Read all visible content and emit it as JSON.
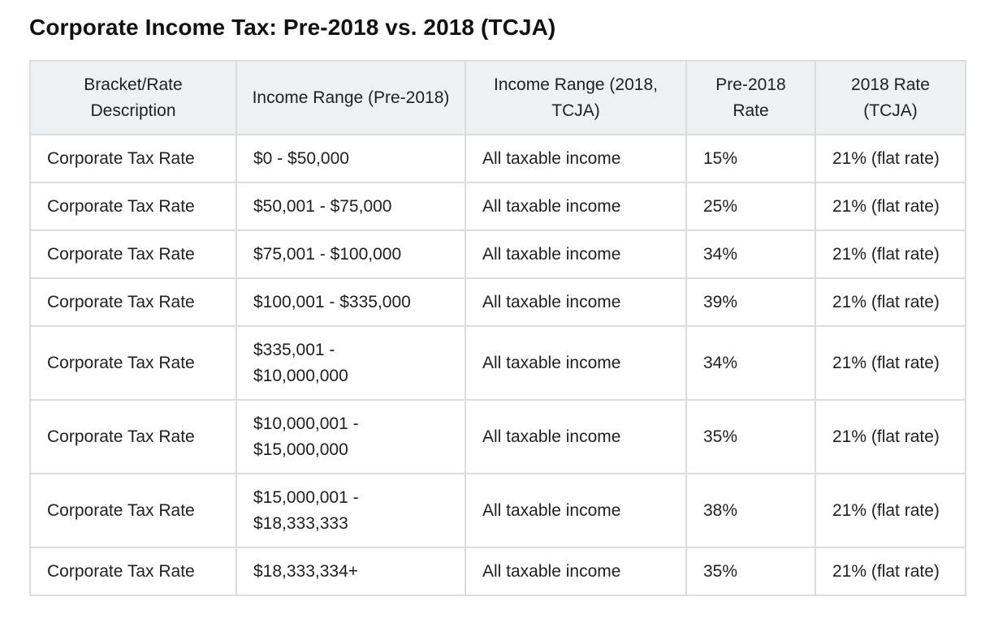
{
  "page": {
    "title": "Corporate Income Tax: Pre-2018 vs. 2018 (TCJA)"
  },
  "table": {
    "headers": [
      "Bracket/Rate Description",
      "Income Range (Pre-2018)",
      "Income Range (2018, TCJA)",
      "Pre-2018 Rate",
      "2018 Rate (TCJA)"
    ],
    "rows": [
      [
        "Corporate Tax Rate",
        "$0 - $50,000",
        "All taxable income",
        "15%",
        "21% (flat rate)"
      ],
      [
        "Corporate Tax Rate",
        "$50,001 - $75,000",
        "All taxable income",
        "25%",
        "21% (flat rate)"
      ],
      [
        "Corporate Tax Rate",
        "$75,001 - $100,000",
        "All taxable income",
        "34%",
        "21% (flat rate)"
      ],
      [
        "Corporate Tax Rate",
        "$100,001 - $335,000",
        "All taxable income",
        "39%",
        "21% (flat rate)"
      ],
      [
        "Corporate Tax Rate",
        "$335,001 - $10,000,000",
        "All taxable income",
        "34%",
        "21% (flat rate)"
      ],
      [
        "Corporate Tax Rate",
        "$10,000,001 - $15,000,000",
        "All taxable income",
        "35%",
        "21% (flat rate)"
      ],
      [
        "Corporate Tax Rate",
        "$15,000,001 - $18,333,333",
        "All taxable income",
        "38%",
        "21% (flat rate)"
      ],
      [
        "Corporate Tax Rate",
        "$18,333,334+",
        "All taxable income",
        "35%",
        "21% (flat rate)"
      ]
    ]
  }
}
